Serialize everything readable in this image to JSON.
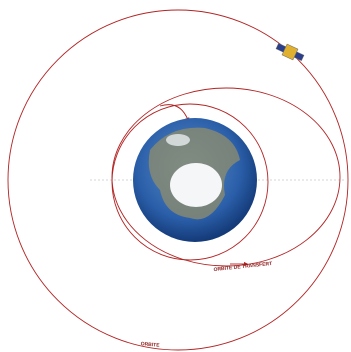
{
  "labels": {
    "transfer_orbit": "ORBITE DE TRANSFERT",
    "orbit": "ORBITE"
  }
}
